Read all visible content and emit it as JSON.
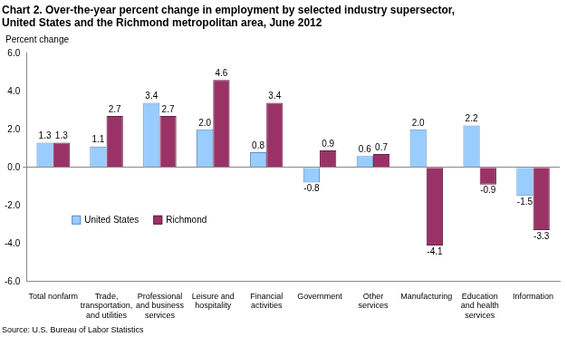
{
  "chart_data": {
    "type": "bar",
    "title": [
      "Chart 2. Over-the-year percent change in employment by selected industry supersector,",
      "United States and the Richmond metropolitan area, June 2012"
    ],
    "y_label": "Percent change",
    "source": "Source: U.S. Bureau of Labor Statistics",
    "categories": [
      [
        "Total nonfarm"
      ],
      [
        "Trade,",
        "transportation,",
        "and utilities"
      ],
      [
        "Professional",
        "and business",
        "services"
      ],
      [
        "Leisure and",
        "hospitality"
      ],
      [
        "Financial",
        "activities"
      ],
      [
        "Government"
      ],
      [
        "Other",
        "services"
      ],
      [
        "Manufacturing"
      ],
      [
        "Education",
        "and health",
        "services"
      ],
      [
        "Information"
      ]
    ],
    "series": [
      {
        "name": "United States",
        "color": "#99ccff",
        "values": [
          1.3,
          1.1,
          3.4,
          2.0,
          0.8,
          -0.8,
          0.6,
          2.0,
          2.2,
          -1.5
        ],
        "value_labels": [
          "1.3",
          "1.1",
          "3.4",
          "2.0",
          "0.8",
          "-0.8",
          "0.6",
          "2.0",
          "2.2",
          "-1.5"
        ]
      },
      {
        "name": "Richmond",
        "color": "#993366",
        "values": [
          1.3,
          2.7,
          2.7,
          4.6,
          3.4,
          0.9,
          0.7,
          -4.1,
          -0.9,
          -3.3
        ],
        "value_labels": [
          "1.3",
          "2.7",
          "2.7",
          "4.6",
          "3.4",
          "0.9",
          "0.7",
          "-4.1",
          "-0.9",
          "-3.3"
        ]
      }
    ],
    "ylim": [
      -6,
      6
    ],
    "yticks": [
      {
        "value": -6,
        "label": "-6.0"
      },
      {
        "value": -4,
        "label": "-4.0"
      },
      {
        "value": -2,
        "label": "-2.0"
      },
      {
        "value": 0,
        "label": "0.0"
      },
      {
        "value": 2,
        "label": "2.0"
      },
      {
        "value": 4,
        "label": "4.0"
      },
      {
        "value": 6,
        "label": "6.0"
      }
    ],
    "grid": false,
    "legend": "lower left",
    "data_labels": true
  }
}
